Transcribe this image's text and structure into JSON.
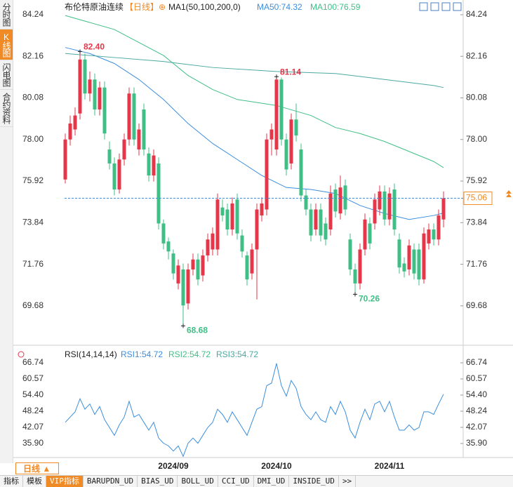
{
  "sidebar": {
    "tabs": [
      "分时图",
      "K线图",
      "闪电图",
      "合约资料"
    ],
    "active": 1
  },
  "footer": {
    "period": "日线",
    "tabs": [
      "指标",
      "模板",
      "VIP指标",
      "BARUPDN_UD",
      "BIAS_UD",
      "BOLL_UD",
      "CCI_UD",
      "DMI_UD",
      "INSIDE_UD",
      ">>"
    ],
    "active": 2
  },
  "chart_data": [
    {
      "type": "candlestick",
      "title": "布伦特原油连续",
      "period": "【日线】",
      "indicator": "MA1(50,100,200,0)",
      "categories": [
        null,
        null,
        null,
        null,
        null,
        null,
        null,
        null,
        null,
        null,
        null,
        null,
        null,
        null,
        null,
        null,
        null,
        null,
        null,
        null,
        null,
        null,
        "2024/09",
        null,
        null,
        null,
        null,
        null,
        null,
        null,
        null,
        null,
        null,
        null,
        null,
        null,
        null,
        null,
        null,
        null,
        null,
        null,
        null,
        "2024/10",
        null,
        null,
        null,
        null,
        null,
        null,
        null,
        null,
        null,
        null,
        null,
        null,
        null,
        null,
        null,
        null,
        null,
        null,
        null,
        null,
        null,
        null,
        "2024/11",
        null,
        null,
        null,
        null,
        null,
        null,
        null,
        null,
        null,
        null,
        null
      ],
      "open": [
        76.0,
        78.0,
        78.5,
        79.3,
        82.0,
        80.3,
        81.0,
        79.5,
        80.6,
        77.5,
        76.8,
        75.5,
        77.0,
        78.0,
        80.3,
        77.5,
        79.5,
        77.3,
        76.2,
        76.8,
        73.8,
        72.9,
        72.3,
        70.8,
        71.5,
        69.8,
        71.5,
        72.0,
        71.2,
        72.2,
        72.5,
        72.5,
        74.6,
        74.5,
        73.5,
        75.0,
        73.2,
        72.2,
        71.3,
        72.5,
        74.2,
        74.5,
        78.0,
        77.5,
        81.0,
        78.0,
        76.8,
        79.0,
        77.5,
        75.2,
        74.5,
        73.5,
        74.5,
        73.8,
        73.5,
        75.5,
        74.3,
        75.7,
        73.0,
        71.5,
        70.8,
        72.5,
        73.8,
        73.8,
        74.5,
        75.4,
        74.0,
        75.5,
        73.0,
        71.8,
        71.5,
        72.5,
        72.5,
        71.0,
        72.8,
        73.5,
        73.0,
        74.0
      ],
      "high": [
        78.3,
        79.2,
        79.6,
        82.4,
        82.3,
        81.4,
        81.3,
        80.9,
        80.9,
        77.9,
        77.1,
        77.3,
        78.3,
        80.6,
        80.6,
        78.8,
        79.8,
        77.6,
        77.5,
        77.1,
        74.0,
        73.1,
        72.5,
        72.0,
        71.8,
        71.8,
        72.3,
        72.3,
        72.5,
        73.3,
        73.6,
        75.3,
        75.0,
        74.8,
        75.1,
        75.3,
        73.5,
        72.4,
        72.8,
        74.8,
        75.1,
        78.3,
        78.8,
        81.14,
        81.1,
        78.3,
        79.3,
        79.8,
        77.8,
        75.5,
        74.8,
        74.8,
        74.8,
        74.1,
        75.7,
        75.8,
        76.2,
        76.0,
        73.3,
        71.8,
        72.8,
        74.3,
        74.1,
        75.3,
        75.7,
        75.7,
        75.6,
        75.8,
        73.3,
        72.1,
        73.0,
        72.8,
        72.8,
        73.6,
        73.8,
        73.8,
        74.5,
        75.4
      ],
      "low": [
        75.8,
        77.7,
        78.2,
        79.0,
        80.0,
        79.9,
        79.2,
        79.2,
        78.0,
        76.5,
        75.2,
        75.3,
        76.7,
        77.7,
        77.7,
        77.2,
        77.2,
        75.9,
        75.9,
        73.5,
        72.5,
        72.0,
        71.0,
        70.5,
        68.68,
        69.5,
        71.2,
        70.7,
        70.9,
        71.9,
        72.2,
        72.2,
        73.9,
        73.2,
        73.2,
        73.0,
        72.1,
        70.7,
        71.0,
        70.0,
        73.9,
        74.2,
        77.2,
        77.2,
        77.7,
        76.2,
        76.5,
        77.9,
        74.9,
        74.2,
        72.9,
        73.2,
        72.9,
        72.7,
        73.2,
        74.1,
        74.0,
        74.2,
        71.2,
        70.26,
        70.5,
        72.2,
        72.5,
        73.5,
        74.2,
        73.7,
        73.7,
        73.2,
        71.3,
        71.1,
        71.2,
        71.0,
        70.7,
        70.8,
        72.5,
        72.7,
        72.7,
        73.6
      ],
      "close": [
        78.0,
        78.8,
        79.2,
        82.0,
        80.3,
        81.0,
        79.5,
        80.6,
        78.3,
        76.8,
        75.5,
        77.0,
        78.0,
        80.3,
        78.0,
        78.5,
        77.5,
        76.2,
        77.2,
        73.8,
        72.8,
        72.4,
        71.3,
        71.7,
        69.7,
        71.5,
        72.0,
        71.0,
        72.2,
        73.0,
        73.3,
        75.0,
        74.2,
        73.5,
        74.8,
        73.3,
        72.4,
        71.0,
        72.5,
        74.5,
        74.8,
        78.0,
        78.5,
        81.0,
        78.0,
        76.5,
        79.0,
        78.2,
        75.2,
        74.5,
        73.2,
        74.5,
        73.2,
        73.0,
        75.3,
        74.4,
        75.6,
        74.5,
        71.5,
        70.8,
        72.5,
        74.0,
        72.8,
        75.0,
        75.4,
        74.0,
        75.3,
        73.5,
        71.6,
        71.4,
        72.7,
        71.3,
        71.0,
        73.3,
        73.5,
        73.0,
        74.2,
        75.06
      ],
      "up_color": "#e5364a",
      "down_color": "#3fbf86",
      "ma_series": [
        {
          "name": "MA50:74.32",
          "color": "#3b8ede",
          "x": [
            0,
            5,
            10,
            15,
            20,
            25,
            30,
            35,
            40,
            45,
            50,
            55,
            60,
            65,
            70,
            75,
            77
          ],
          "values": [
            82.6,
            82.3,
            81.8,
            81.0,
            80.0,
            78.8,
            77.8,
            77.0,
            76.2,
            75.6,
            75.5,
            75.3,
            74.7,
            74.3,
            74.0,
            74.2,
            74.32
          ]
        },
        {
          "name": "MA100:76.59",
          "color": "#3fbf86",
          "x": [
            0,
            10,
            20,
            25,
            30,
            35,
            43,
            50,
            55,
            60,
            65,
            70,
            75,
            77
          ],
          "values": [
            84.2,
            83.5,
            82.2,
            81.2,
            80.5,
            80.0,
            79.7,
            79.2,
            78.6,
            78.3,
            77.9,
            77.4,
            76.9,
            76.59
          ]
        },
        {
          "color": "#4aa8a0",
          "x": [
            0,
            10,
            20,
            30,
            43,
            55,
            65,
            75,
            77
          ],
          "values": [
            82.3,
            82.1,
            81.9,
            81.6,
            81.4,
            81.3,
            81.0,
            80.7,
            80.6
          ]
        }
      ],
      "ylim": [
        67.78,
        84.8
      ],
      "yticks": [
        84.24,
        82.16,
        80.08,
        {
          "value": 78,
          "label": "78.00"
        },
        75.92,
        73.84,
        71.76,
        69.68
      ],
      "last_price": 75.06,
      "last_price_color": "#f08a24",
      "annotations": [
        {
          "x": 3,
          "value": 82.4,
          "label": "82.40",
          "color": "#e5364a"
        },
        {
          "x": 43,
          "value": 81.14,
          "color": "#e5364a"
        },
        {
          "x": 24,
          "value": 68.68,
          "color": "#3fbf86"
        },
        {
          "x": 59,
          "value": 70.26,
          "color": "#3fbf86"
        }
      ]
    },
    {
      "type": "line",
      "title": "RSI(14,14,14)",
      "series": [
        {
          "name": "RSI1:54.72",
          "color": "#3b8ede",
          "values": [
            44,
            46,
            48,
            53,
            49,
            51,
            47,
            50,
            45,
            42,
            39,
            43,
            46,
            52,
            46,
            47,
            44,
            41,
            44,
            38,
            36,
            35,
            33,
            35,
            31,
            36,
            38,
            36,
            39,
            42,
            44,
            49,
            47,
            44,
            48,
            45,
            42,
            39,
            44,
            49,
            50,
            58,
            59,
            66.5,
            58,
            54,
            60,
            57,
            50,
            47,
            45,
            48,
            45,
            44,
            50,
            47,
            52,
            48,
            41,
            38,
            44,
            49,
            45,
            51,
            52,
            48,
            52,
            46,
            41,
            41,
            43,
            41,
            42,
            48,
            48,
            47,
            51,
            54.72
          ]
        }
      ],
      "legend": [
        {
          "name": "RSI2:54.72",
          "color": "#3fbf86"
        },
        {
          "name": "RSI3:54.72",
          "color": "#4aa8a0"
        }
      ],
      "ylim": [
        30.54,
        72.1
      ],
      "yticks": [
        66.74,
        60.57,
        {
          "value": 54.4,
          "label": "54.40"
        },
        48.24,
        42.07,
        {
          "value": 35.9,
          "label": "35.90"
        }
      ]
    }
  ]
}
